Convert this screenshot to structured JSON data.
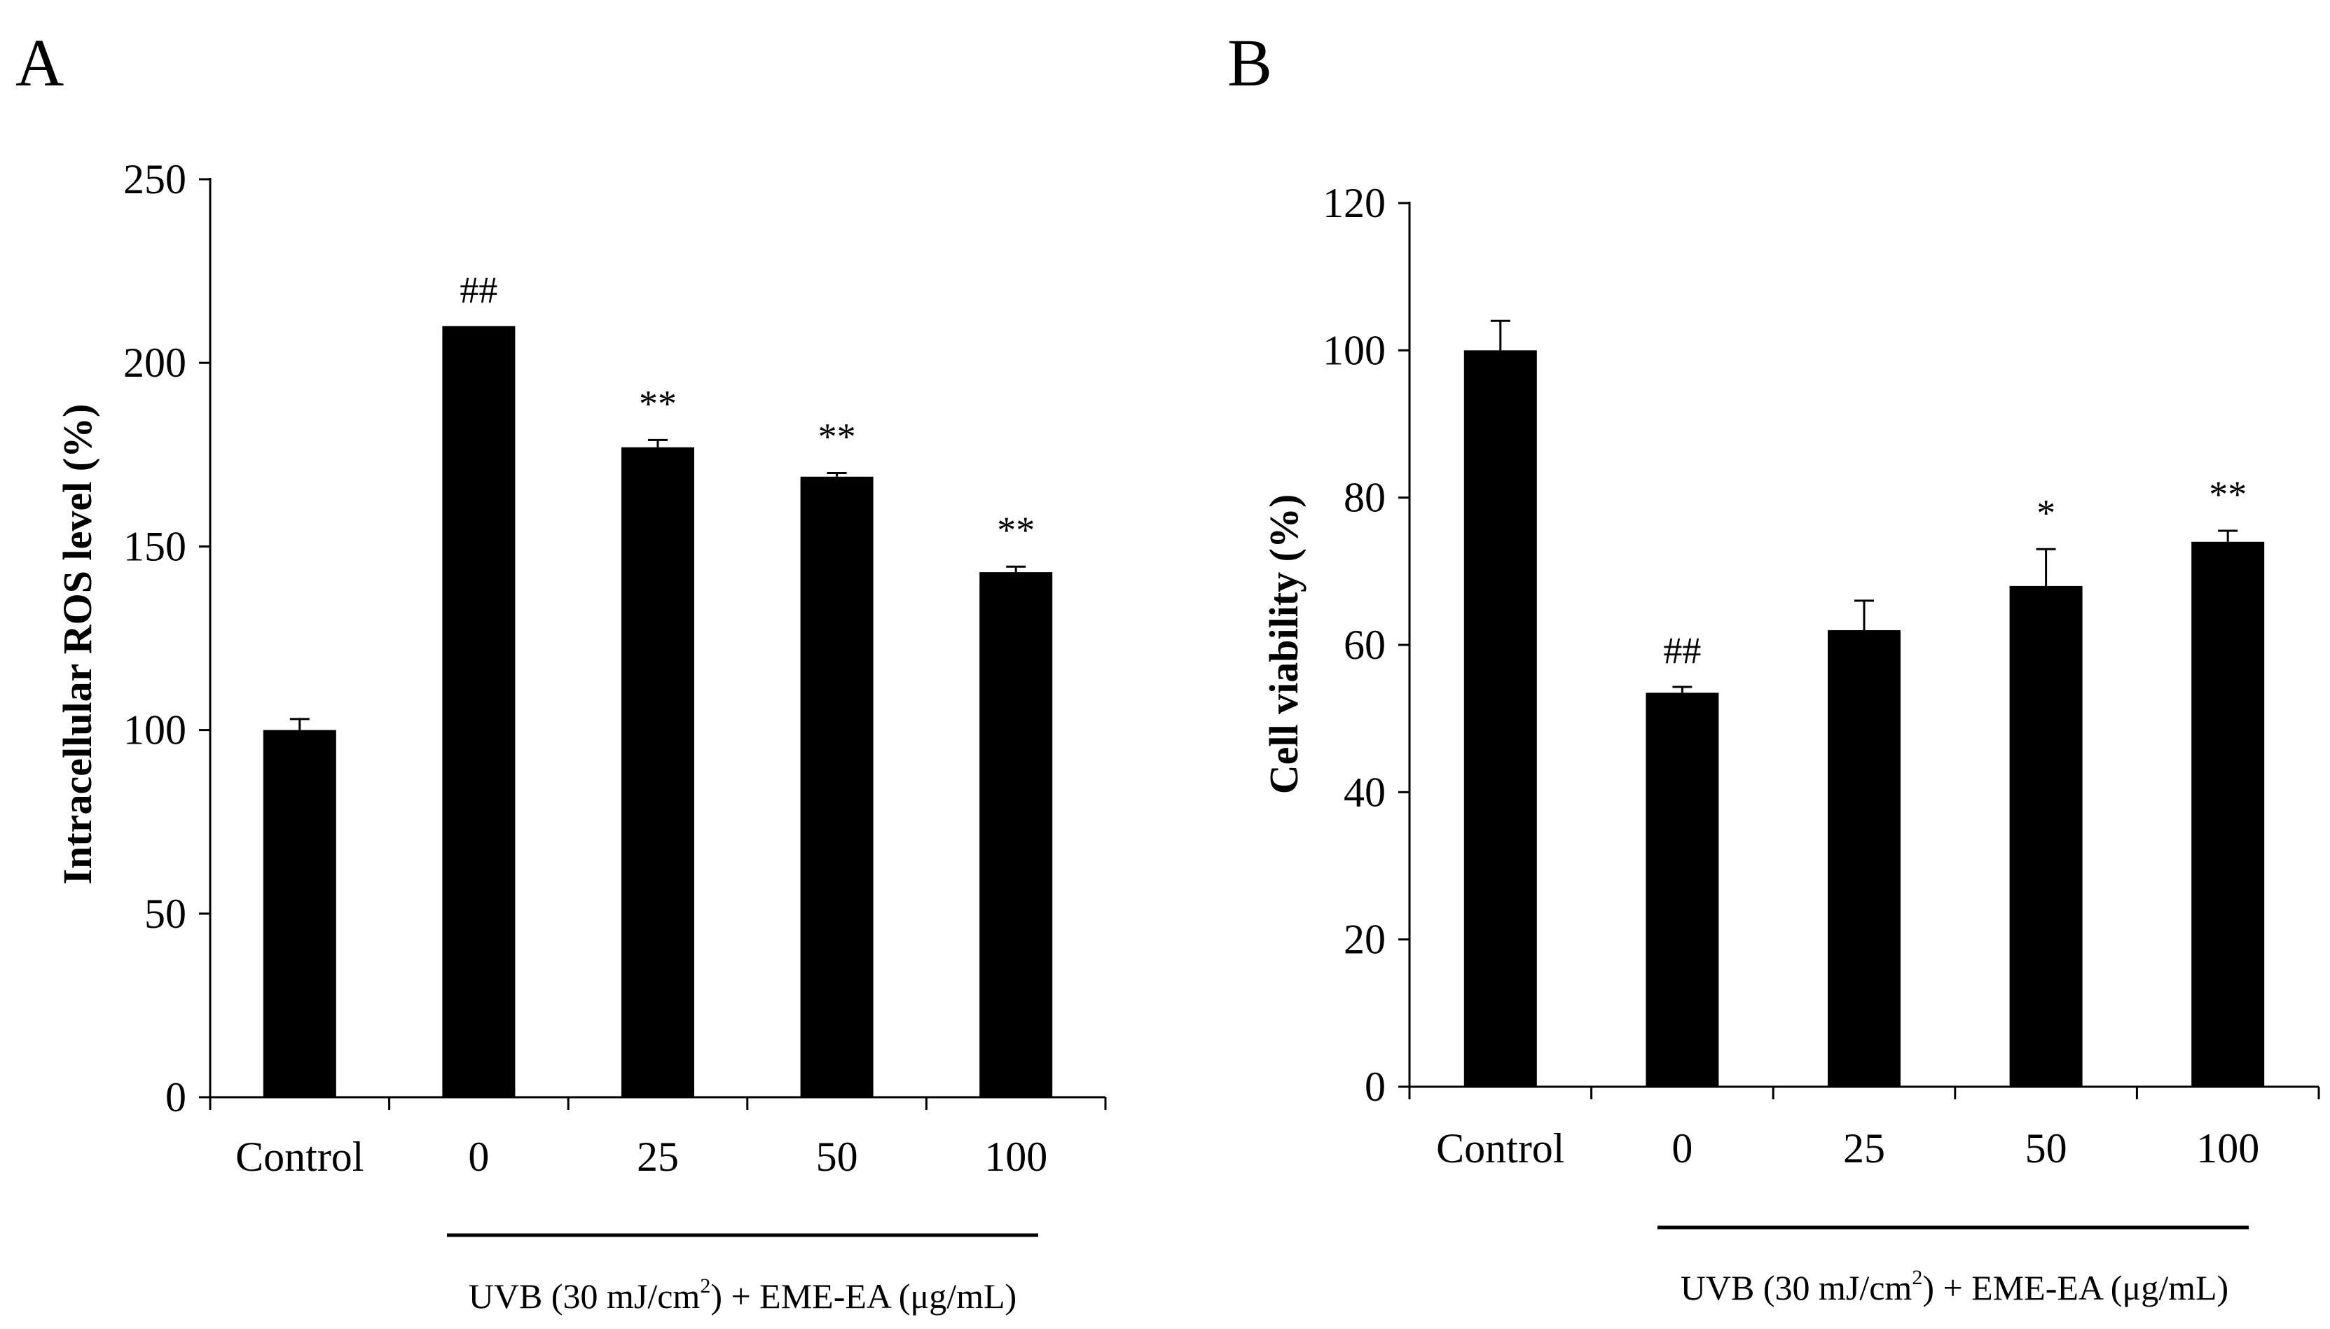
{
  "chart_data": [
    {
      "panel": "A",
      "type": "bar",
      "categories": [
        "Control",
        "0",
        "25",
        "50",
        "100"
      ],
      "values": [
        100,
        210,
        177,
        169,
        143
      ],
      "errors": [
        3,
        0,
        2,
        1,
        1.5
      ],
      "annotations": [
        "",
        "##",
        "**",
        "**",
        "**"
      ],
      "ylabel": "Intracellular ROS level (%)",
      "ylim": [
        0,
        250
      ],
      "yticks": [
        0,
        50,
        100,
        150,
        200,
        250
      ],
      "group_label": {
        "pre": "UVB  (30 mJ/cm",
        "sup": "2",
        "post": ") + EME-EA  (μg/mL)"
      }
    },
    {
      "panel": "B",
      "type": "bar",
      "categories": [
        "Control",
        "0",
        "25",
        "50",
        "100"
      ],
      "values": [
        100,
        53.5,
        62,
        68,
        74
      ],
      "errors": [
        4,
        0.8,
        4,
        5,
        1.5
      ],
      "annotations": [
        "",
        "##",
        "",
        "*",
        "**"
      ],
      "ylabel": "Cell viability (%)",
      "ylim": [
        0,
        120
      ],
      "yticks": [
        0,
        20,
        40,
        60,
        80,
        100,
        120
      ],
      "group_label": {
        "pre": "UVB  (30 mJ/cm",
        "sup": "2",
        "post": ") + EME-EA  (μg/mL)"
      }
    }
  ]
}
